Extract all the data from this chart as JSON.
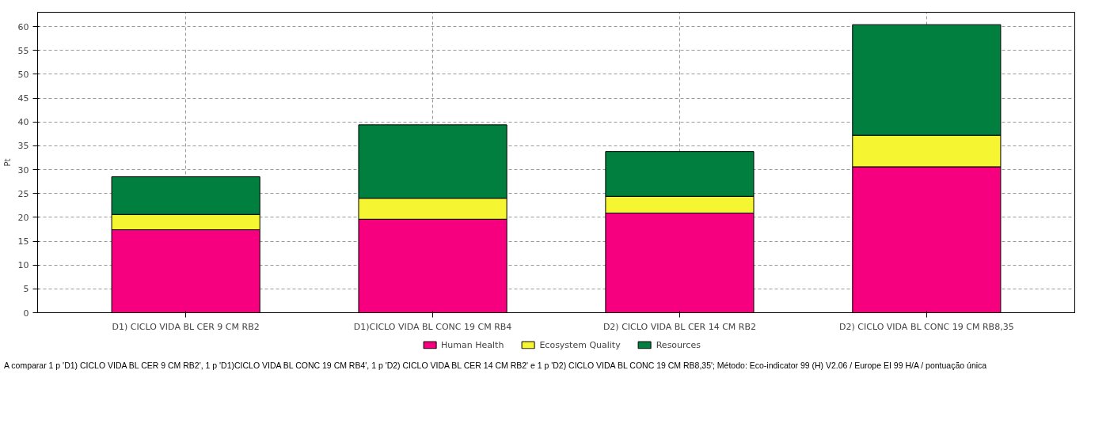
{
  "chart_data": {
    "type": "bar",
    "stacked": true,
    "ylabel": "Pt",
    "categories": [
      "D1) CICLO VIDA BL CER 9 CM RB2",
      "D1)CICLO VIDA BL CONC 19 CM RB4",
      "D2) CICLO VIDA BL CER 14 CM RB2",
      "D2) CICLO VIDA BL CONC 19 CM RB8,35"
    ],
    "series": [
      {
        "name": "Human Health",
        "color": "#f7007f",
        "values": [
          17.4,
          19.6,
          20.9,
          30.6
        ]
      },
      {
        "name": "Ecosystem Quality",
        "color": "#f5f531",
        "values": [
          3.2,
          4.4,
          3.5,
          6.6
        ]
      },
      {
        "name": "Resources",
        "color": "#007f3f",
        "values": [
          7.9,
          15.4,
          9.4,
          23.2
        ]
      }
    ],
    "ylim": [
      0,
      63
    ],
    "yticks": [
      0,
      5,
      10,
      15,
      20,
      25,
      30,
      35,
      40,
      45,
      50,
      55,
      60
    ],
    "grid": true,
    "legend": "bottom",
    "annotations": [
      "A comparar 1 p 'D1) CICLO VIDA BL CER 9 CM RB2', 1 p 'D1)CICLO VIDA BL CONC 19 CM RB4', 1 p 'D2) CICLO VIDA BL CER 14 CM RB2' e 1 p 'D2) CICLO VIDA BL CONC 19 CM RB8,35'; Método: Eco-indicator 99 (H) V2.06 / Europe EI 99 H/A / pontuação única"
    ]
  }
}
